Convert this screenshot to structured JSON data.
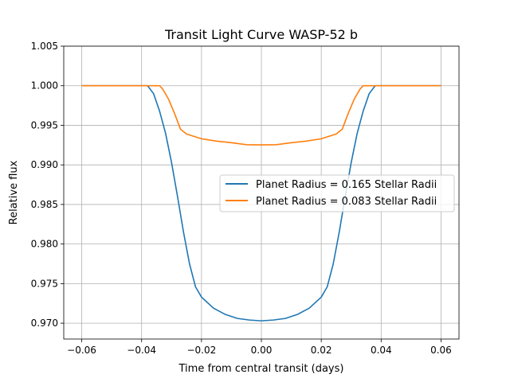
{
  "chart_data": {
    "type": "line",
    "title": "Transit Light Curve WASP-52 b",
    "xlabel": "Time from central transit (days)",
    "ylabel": "Relative flux",
    "xlim": [
      -0.066,
      0.066
    ],
    "ylim": [
      0.968,
      1.005
    ],
    "x_ticks": [
      -0.06,
      -0.04,
      -0.02,
      0.0,
      0.02,
      0.04,
      0.06
    ],
    "x_tick_labels": [
      "−0.06",
      "−0.04",
      "−0.02",
      "0.00",
      "0.02",
      "0.04",
      "0.06"
    ],
    "y_ticks": [
      0.97,
      0.975,
      0.98,
      0.985,
      0.99,
      0.995,
      1.0,
      1.005
    ],
    "y_tick_labels": [
      "0.970",
      "0.975",
      "0.980",
      "0.985",
      "0.990",
      "0.995",
      "1.000",
      "1.005"
    ],
    "grid": true,
    "legend_position": "center-right",
    "series": [
      {
        "name": "Planet Radius = 0.165 Stellar Radii",
        "color": "#1f77b4",
        "points": [
          [
            -0.06,
            1.0
          ],
          [
            -0.038,
            1.0
          ],
          [
            -0.036,
            0.999
          ],
          [
            -0.034,
            0.9968
          ],
          [
            -0.032,
            0.994
          ],
          [
            -0.03,
            0.9903
          ],
          [
            -0.028,
            0.986
          ],
          [
            -0.026,
            0.9815
          ],
          [
            -0.024,
            0.9775
          ],
          [
            -0.022,
            0.9746
          ],
          [
            -0.02,
            0.9733
          ],
          [
            -0.016,
            0.9719
          ],
          [
            -0.012,
            0.9711
          ],
          [
            -0.008,
            0.9706
          ],
          [
            -0.004,
            0.9704
          ],
          [
            0.0,
            0.9703
          ],
          [
            0.004,
            0.9704
          ],
          [
            0.008,
            0.9706
          ],
          [
            0.012,
            0.9711
          ],
          [
            0.016,
            0.9719
          ],
          [
            0.02,
            0.9733
          ],
          [
            0.022,
            0.9746
          ],
          [
            0.024,
            0.9775
          ],
          [
            0.026,
            0.9815
          ],
          [
            0.028,
            0.986
          ],
          [
            0.03,
            0.9903
          ],
          [
            0.032,
            0.994
          ],
          [
            0.034,
            0.9968
          ],
          [
            0.036,
            0.999
          ],
          [
            0.038,
            1.0
          ],
          [
            0.06,
            1.0
          ]
        ]
      },
      {
        "name": "Planet Radius = 0.083 Stellar Radii",
        "color": "#ff7f0e",
        "points": [
          [
            -0.06,
            1.0
          ],
          [
            -0.034,
            1.0
          ],
          [
            -0.033,
            0.9996
          ],
          [
            -0.031,
            0.9983
          ],
          [
            -0.029,
            0.9965
          ],
          [
            -0.027,
            0.9945
          ],
          [
            -0.025,
            0.9939
          ],
          [
            -0.02,
            0.9933
          ],
          [
            -0.015,
            0.993
          ],
          [
            -0.01,
            0.9928
          ],
          [
            -0.005,
            0.99255
          ],
          [
            0.0,
            0.99253
          ],
          [
            0.005,
            0.99255
          ],
          [
            0.01,
            0.9928
          ],
          [
            0.015,
            0.993
          ],
          [
            0.02,
            0.9933
          ],
          [
            0.025,
            0.9939
          ],
          [
            0.027,
            0.9945
          ],
          [
            0.029,
            0.9965
          ],
          [
            0.031,
            0.9983
          ],
          [
            0.033,
            0.9996
          ],
          [
            0.034,
            1.0
          ],
          [
            0.06,
            1.0
          ]
        ]
      }
    ]
  }
}
